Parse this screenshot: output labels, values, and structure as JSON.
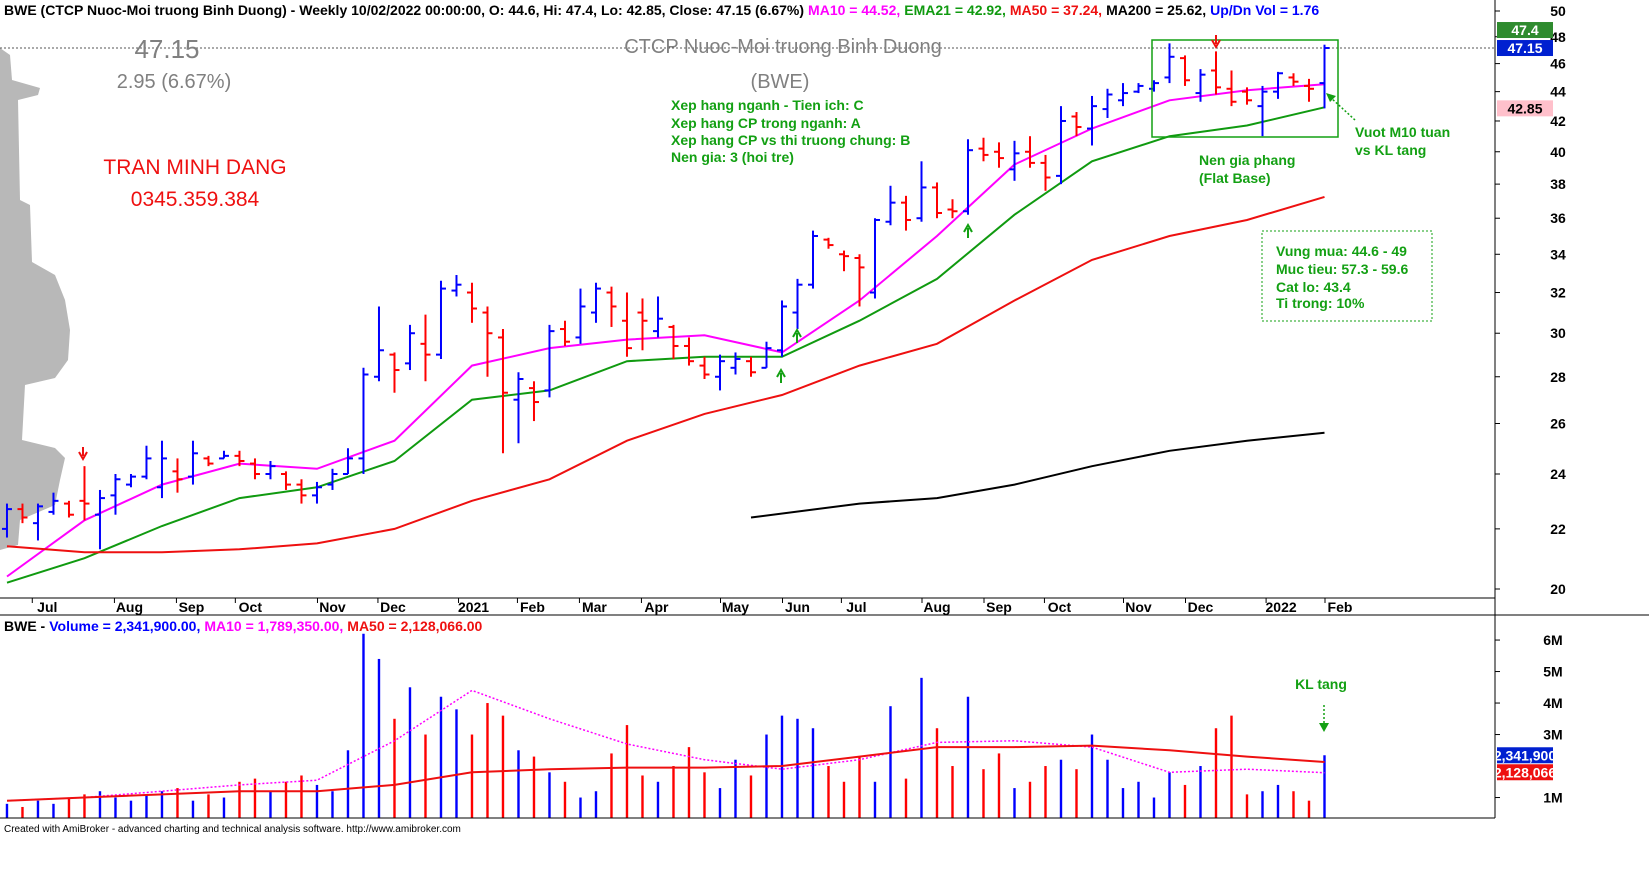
{
  "header": {
    "title": "BWE (CTCP Nuoc-Moi truong Binh Duong) - Weekly 10/02/2022 00:00:00, O: 44.6, Hi: 47.4, Lo: 42.85, Close: 47.15 (6.67%)",
    "ma10": "MA10 = 44.52,",
    "ema21": "EMA21 = 42.92,",
    "ma50": "MA50 = 37.24,",
    "ma200": "MA200 = 25.62,",
    "updn": "Up/Dn Vol = 1.76"
  },
  "volume_header": {
    "ticker": "BWE -",
    "volume": "Volume = 2,341,900.00,",
    "ma10": "MA10 = 1,789,350.00,",
    "ma50": "MA50 = 2,128,066.00"
  },
  "annotations": {
    "top_price": "47.15",
    "change": "2.95 (6.67%)",
    "company": "CTCP Nuoc-Moi truong Binh Duong",
    "ticker": "(BWE)",
    "ratings": [
      "Xep hang nganh - Tien ich: C",
      "Xep hang CP trong nganh: A",
      "Xep hang CP vs thi truong chung: B",
      "Nen gia: 3 (hoi tre)"
    ],
    "author": "TRAN MINH DANG",
    "phone": "0345.359.384",
    "plan": [
      "Vung mua: 44.6 - 49",
      "Muc tieu: 57.3 - 59.6",
      "Cat lo: 43.4",
      "Ti trong: 10%"
    ],
    "base": [
      "Nen gia phang",
      "(Flat Base)"
    ],
    "breakout": [
      "Vuot M10 tuan",
      "vs KL tang"
    ],
    "volume_note": "KL tang"
  },
  "footer": "Created with AmiBroker - advanced charting and technical analysis software. http://www.amibroker.com",
  "chart_data": [
    {
      "type": "ohlc",
      "log_scale": true,
      "ylim": [
        20,
        50
      ],
      "yticks": [
        20,
        22,
        24,
        26,
        28,
        30,
        32,
        34,
        36,
        38,
        40,
        42,
        44,
        46,
        48,
        50
      ],
      "xlim": [
        -0.45,
        96
      ],
      "xticks": [
        {
          "value": 2.6,
          "label": "Jul"
        },
        {
          "value": 7.9,
          "label": "Aug"
        },
        {
          "value": 11.9,
          "label": "Sep"
        },
        {
          "value": 15.7,
          "label": "Oct"
        },
        {
          "value": 21,
          "label": "Nov"
        },
        {
          "value": 24.9,
          "label": "Dec"
        },
        {
          "value": 30.1,
          "label": "2021"
        },
        {
          "value": 33.9,
          "label": "Feb"
        },
        {
          "value": 37.9,
          "label": "Mar"
        },
        {
          "value": 41.9,
          "label": "Apr"
        },
        {
          "value": 47,
          "label": "May"
        },
        {
          "value": 51,
          "label": "Jun"
        },
        {
          "value": 54.8,
          "label": "Jul"
        },
        {
          "value": 60,
          "label": "Aug"
        },
        {
          "value": 64,
          "label": "Sep"
        },
        {
          "value": 67.9,
          "label": "Oct"
        },
        {
          "value": 73,
          "label": "Nov"
        },
        {
          "value": 77,
          "label": "Dec"
        },
        {
          "value": 82.2,
          "label": "2022"
        },
        {
          "value": 86,
          "label": "Feb"
        }
      ],
      "open": [
        22.0,
        22.7,
        22.2,
        22.6,
        22.9,
        23.0,
        22.5,
        23.2,
        23.6,
        23.9,
        23.5,
        24.1,
        23.9,
        24.6,
        24.6,
        24.7,
        24.4,
        24.0,
        24.0,
        23.6,
        23.2,
        23.6,
        24.0,
        24.6,
        28.0,
        29.0,
        28.6,
        29.5,
        29.0,
        32.1,
        32.0,
        31.0,
        29.8,
        27.0,
        27.5,
        27.4,
        30.2,
        29.8,
        31.0,
        32.0,
        30.6,
        31.0,
        30.1,
        30.3,
        29.4,
        28.5,
        28.0,
        28.4,
        28.7,
        28.4,
        29.2,
        31.0,
        32.4,
        34.8,
        34.0,
        33.8,
        32.0,
        35.8,
        36.9,
        36.0,
        37.8,
        36.5,
        36.4,
        40.2,
        40.0,
        38.9,
        40.0,
        39.3,
        38.5,
        42.3,
        41.5,
        42.8,
        43.4,
        44.0,
        44.2,
        45.0,
        46.4,
        43.9,
        45.5,
        44.2,
        44.0,
        43.0,
        44.0,
        45.0,
        44.4,
        44.6
      ],
      "high": [
        22.9,
        22.9,
        22.9,
        23.3,
        23.0,
        24.3,
        23.4,
        24.0,
        24.0,
        25.1,
        25.3,
        24.6,
        25.3,
        24.7,
        24.9,
        24.9,
        24.6,
        24.5,
        24.1,
        23.8,
        23.7,
        24.2,
        25.0,
        28.4,
        31.3,
        29.1,
        30.4,
        30.9,
        32.6,
        32.9,
        32.5,
        31.3,
        30.2,
        28.2,
        27.8,
        30.4,
        30.6,
        32.2,
        32.5,
        32.3,
        32.0,
        31.7,
        31.8,
        30.4,
        29.8,
        28.9,
        29.0,
        29.1,
        28.9,
        29.6,
        31.6,
        32.7,
        35.3,
        34.9,
        34.2,
        34.0,
        36.0,
        37.9,
        37.3,
        39.4,
        38.1,
        37.1,
        40.8,
        40.9,
        40.6,
        40.7,
        41.0,
        39.8,
        43.0,
        42.6,
        43.7,
        44.2,
        44.6,
        44.6,
        44.8,
        47.5,
        46.6,
        45.6,
        46.9,
        45.5,
        44.3,
        44.4,
        45.4,
        45.3,
        44.9,
        47.4
      ],
      "low": [
        21.7,
        22.2,
        21.6,
        22.5,
        22.4,
        22.3,
        21.3,
        22.5,
        23.5,
        23.8,
        23.1,
        23.3,
        23.6,
        24.3,
        24.6,
        24.3,
        23.8,
        23.8,
        23.4,
        22.9,
        22.9,
        23.4,
        24.0,
        24.0,
        27.8,
        27.3,
        28.3,
        27.8,
        28.8,
        31.8,
        30.5,
        28.0,
        24.8,
        25.2,
        26.1,
        27.1,
        29.4,
        29.5,
        30.5,
        30.3,
        28.9,
        29.2,
        29.8,
        28.8,
        28.5,
        27.9,
        27.4,
        28.1,
        28.0,
        28.4,
        28.9,
        30.2,
        32.2,
        34.3,
        33.1,
        31.3,
        31.7,
        35.6,
        35.3,
        35.8,
        36.0,
        36.0,
        36.2,
        39.4,
        39.0,
        38.2,
        39.0,
        37.6,
        38.0,
        41.0,
        40.4,
        42.2,
        43.0,
        43.9,
        44.0,
        44.6,
        44.4,
        43.3,
        43.8,
        43.0,
        43.1,
        41.0,
        43.5,
        44.4,
        43.3,
        42.85
      ],
      "close": [
        22.7,
        22.4,
        22.8,
        23.0,
        22.5,
        22.9,
        23.1,
        23.8,
        23.9,
        24.6,
        24.6,
        23.8,
        24.8,
        24.4,
        24.7,
        24.5,
        24.0,
        24.3,
        23.6,
        23.2,
        23.5,
        24.0,
        24.6,
        28.1,
        29.2,
        28.3,
        30.0,
        29.0,
        32.2,
        32.4,
        31.2,
        30.0,
        27.3,
        27.9,
        26.9,
        30.1,
        29.6,
        31.3,
        32.2,
        31.3,
        29.3,
        30.6,
        30.7,
        29.4,
        28.7,
        28.1,
        28.7,
        28.8,
        28.2,
        29.3,
        31.3,
        32.4,
        35.0,
        34.5,
        33.9,
        33.3,
        35.9,
        36.9,
        35.9,
        37.8,
        36.3,
        36.4,
        40.1,
        39.8,
        39.6,
        39.9,
        39.3,
        38.4,
        42.0,
        41.6,
        43.0,
        43.8,
        43.9,
        44.4,
        44.6,
        46.5,
        44.8,
        45.2,
        44.3,
        43.3,
        43.4,
        44.0,
        45.3,
        44.7,
        44.2,
        47.15
      ],
      "up_color": "#0000ff",
      "down_color": "#ff0000",
      "series": [
        {
          "color": "#ff00ff",
          "x": [
            0,
            5,
            10,
            15,
            20,
            25,
            30,
            35,
            40,
            45,
            50,
            55,
            60,
            65,
            70,
            75,
            80,
            85
          ],
          "values": [
            20.4,
            22.3,
            23.6,
            24.4,
            24.2,
            25.3,
            28.5,
            29.3,
            29.7,
            29.9,
            29.1,
            31.6,
            35.0,
            39.2,
            41.5,
            43.4,
            44.1,
            44.52
          ]
        },
        {
          "color": "#109a10",
          "x": [
            0,
            5,
            10,
            15,
            20,
            25,
            30,
            35,
            40,
            45,
            50,
            55,
            60,
            65,
            70,
            75,
            80,
            85
          ],
          "values": [
            20.2,
            21.0,
            22.1,
            23.1,
            23.5,
            24.5,
            27.0,
            27.4,
            28.7,
            28.9,
            28.9,
            30.6,
            32.7,
            36.2,
            39.4,
            41.0,
            41.7,
            42.92
          ]
        },
        {
          "color": "#ee1010",
          "x": [
            0,
            5,
            10,
            15,
            20,
            25,
            30,
            35,
            40,
            45,
            50,
            55,
            60,
            65,
            70,
            75,
            80,
            85
          ],
          "values": [
            21.4,
            21.2,
            21.2,
            21.3,
            21.5,
            22.0,
            23.0,
            23.8,
            25.3,
            26.4,
            27.2,
            28.5,
            29.5,
            31.6,
            33.7,
            35.0,
            35.9,
            37.24
          ]
        },
        {
          "color": "#000000",
          "x": [
            48,
            55,
            60,
            65,
            70,
            75,
            80,
            85
          ],
          "values": [
            22.4,
            22.9,
            23.1,
            23.6,
            24.3,
            24.9,
            25.3,
            25.62
          ]
        }
      ],
      "last_labels": [
        {
          "value": 47.15,
          "color": "#0020d0",
          "text_color": "#ffffff"
        },
        {
          "value": 47.4,
          "color": "#2e8b2e",
          "text_color": "#ffffff"
        },
        {
          "value": 42.85,
          "color": "#ffc0cb",
          "text_color": "#000000"
        }
      ]
    },
    {
      "type": "bar",
      "xlim": [
        -0.45,
        96
      ],
      "ylim": [
        350000,
        6700000
      ],
      "yticks": [
        {
          "value": 1000000,
          "label": "1M"
        },
        {
          "value": 3000000,
          "label": "3M"
        },
        {
          "value": 4000000,
          "label": "4M"
        },
        {
          "value": 5000000,
          "label": "5M"
        },
        {
          "value": 6000000,
          "label": "6M"
        }
      ],
      "values": [
        800000,
        700000,
        900000,
        800000,
        1000000,
        1100000,
        1200000,
        1000000,
        900000,
        1100000,
        1200000,
        1300000,
        900000,
        1100000,
        1000000,
        1500000,
        1600000,
        1200000,
        1500000,
        1700000,
        1400000,
        1200000,
        2500000,
        6200000,
        5400000,
        3500000,
        4500000,
        3000000,
        4200000,
        3800000,
        3000000,
        4000000,
        3600000,
        2500000,
        2300000,
        1800000,
        1500000,
        1000000,
        1200000,
        2400000,
        3300000,
        1700000,
        1500000,
        2000000,
        2600000,
        1800000,
        1300000,
        2200000,
        1700000,
        3000000,
        3600000,
        3500000,
        3200000,
        2000000,
        1500000,
        2300000,
        1500000,
        3900000,
        1600000,
        4800000,
        3200000,
        2000000,
        4200000,
        1900000,
        2400000,
        1300000,
        1500000,
        2000000,
        2200000,
        1900000,
        3000000,
        2200000,
        1300000,
        1500000,
        1000000,
        1800000,
        1400000,
        2000000,
        3200000,
        3600000,
        1100000,
        1200000,
        1400000,
        1200000,
        900000,
        2341900
      ],
      "series": [
        {
          "color": "#ff00ff",
          "dashed": true,
          "x": [
            0,
            5,
            10,
            15,
            20,
            25,
            30,
            35,
            40,
            45,
            50,
            55,
            60,
            65,
            70,
            75,
            80,
            85
          ],
          "values": [
            900000,
            1000000,
            1200000,
            1400000,
            1550000,
            2800000,
            4400000,
            3500000,
            2700000,
            2200000,
            1900000,
            2200000,
            2750000,
            2800000,
            2600000,
            1800000,
            1900000,
            1789350
          ]
        },
        {
          "color": "#ee1010",
          "dashed": false,
          "x": [
            0,
            5,
            10,
            15,
            20,
            25,
            30,
            35,
            40,
            45,
            50,
            55,
            60,
            65,
            70,
            75,
            80,
            85
          ],
          "values": [
            900000,
            1000000,
            1100000,
            1200000,
            1200000,
            1400000,
            1800000,
            1900000,
            1950000,
            1950000,
            2000000,
            2300000,
            2600000,
            2600000,
            2650000,
            2500000,
            2300000,
            2128066
          ]
        }
      ],
      "last_labels": [
        {
          "value": 2341900,
          "label": "2,341,900",
          "color": "#0020d0",
          "text_color": "#ffffff"
        },
        {
          "value": 2128066,
          "label": "2,128,066",
          "color": "#ee1010",
          "text_color": "#ffffff"
        }
      ]
    }
  ]
}
